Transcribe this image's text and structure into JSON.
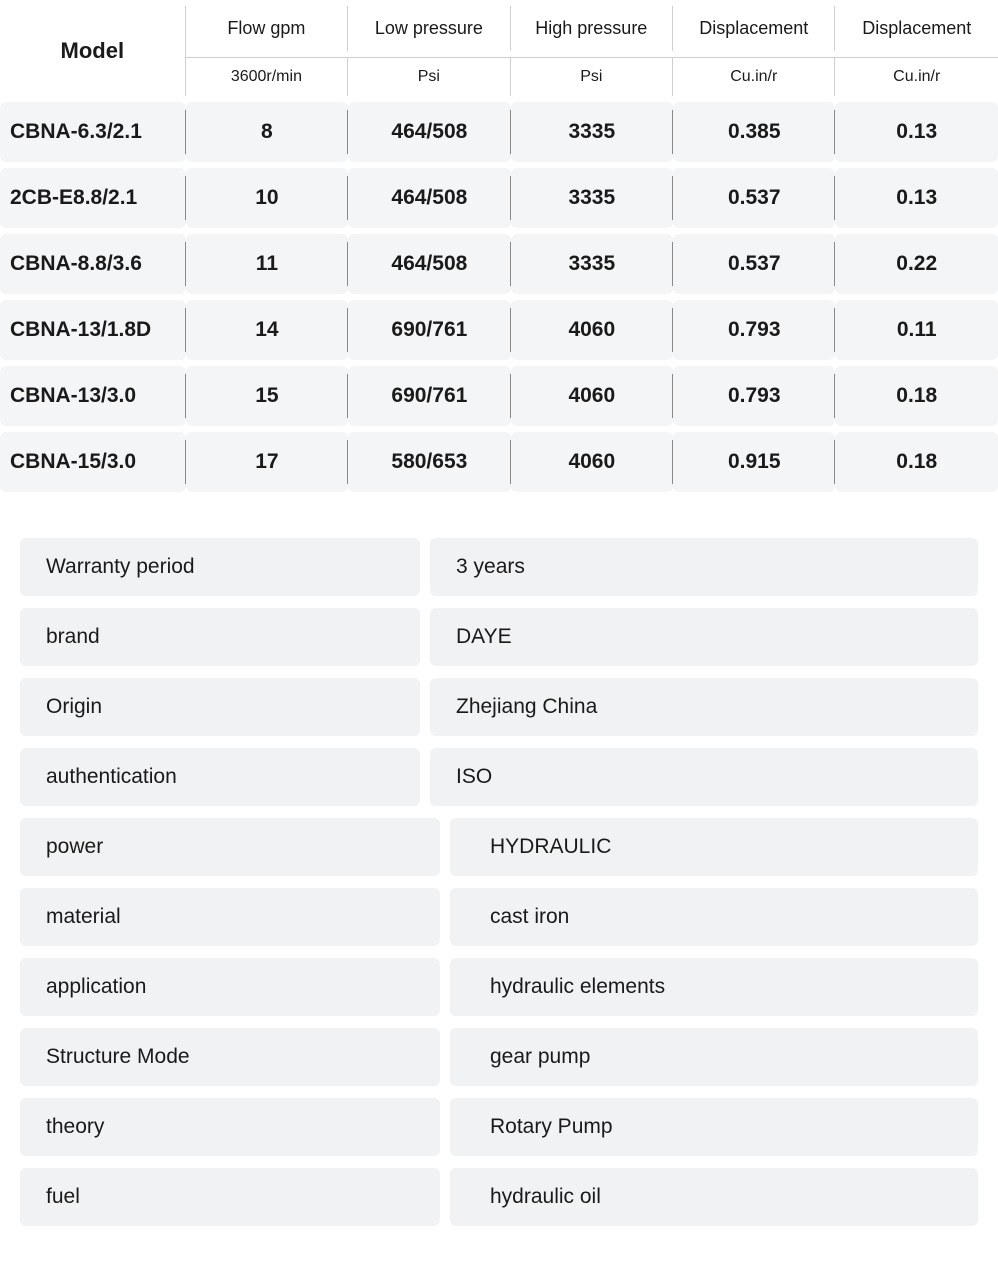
{
  "table": {
    "headers": {
      "model": "Model",
      "cols": [
        "Flow gpm",
        "Low pressure",
        "High pressure",
        "Displacement",
        "Displacement"
      ],
      "units": [
        "3600r/min",
        "Psi",
        "Psi",
        "Cu.in/r",
        "Cu.in/r"
      ]
    },
    "rows": [
      {
        "model": "CBNA-6.3/2.1",
        "flow": "8",
        "low": "464/508",
        "high": "3335",
        "d1": "0.385",
        "d2": "0.13"
      },
      {
        "model": "2CB-E8.8/2.1",
        "flow": "10",
        "low": "464/508",
        "high": "3335",
        "d1": "0.537",
        "d2": "0.13"
      },
      {
        "model": "CBNA-8.8/3.6",
        "flow": "11",
        "low": "464/508",
        "high": "3335",
        "d1": "0.537",
        "d2": "0.22"
      },
      {
        "model": "CBNA-13/1.8D",
        "flow": "14",
        "low": "690/761",
        "high": "4060",
        "d1": "0.793",
        "d2": "0.11"
      },
      {
        "model": "CBNA-13/3.0",
        "flow": "15",
        "low": "690/761",
        "high": "4060",
        "d1": "0.793",
        "d2": "0.18"
      },
      {
        "model": "CBNA-15/3.0",
        "flow": "17",
        "low": "580/653",
        "high": "4060",
        "d1": "0.915",
        "d2": "0.18"
      }
    ]
  },
  "attrs": [
    {
      "label": "Warranty period",
      "value": "3 years",
      "indent": false
    },
    {
      "label": "brand",
      "value": "DAYE",
      "indent": false
    },
    {
      "label": "Origin",
      "value": "Zhejiang China",
      "indent": false
    },
    {
      "label": "authentication",
      "value": "ISO",
      "indent": false
    },
    {
      "label": "power",
      "value": "HYDRAULIC",
      "indent": true
    },
    {
      "label": "material",
      "value": "cast iron",
      "indent": true
    },
    {
      "label": "application",
      "value": "hydraulic elements",
      "indent": true
    },
    {
      "label": "Structure Mode",
      "value": "gear pump",
      "indent": true
    },
    {
      "label": "theory",
      "value": "Rotary Pump",
      "indent": true
    },
    {
      "label": "fuel",
      "value": "hydraulic oil",
      "indent": true
    }
  ],
  "colors": {
    "row_bg": "#f4f5f6",
    "attr_bg": "#f1f2f3",
    "divider": "#8a8a8a",
    "header_border": "#d0d0d0",
    "text": "#1a1a1a"
  }
}
